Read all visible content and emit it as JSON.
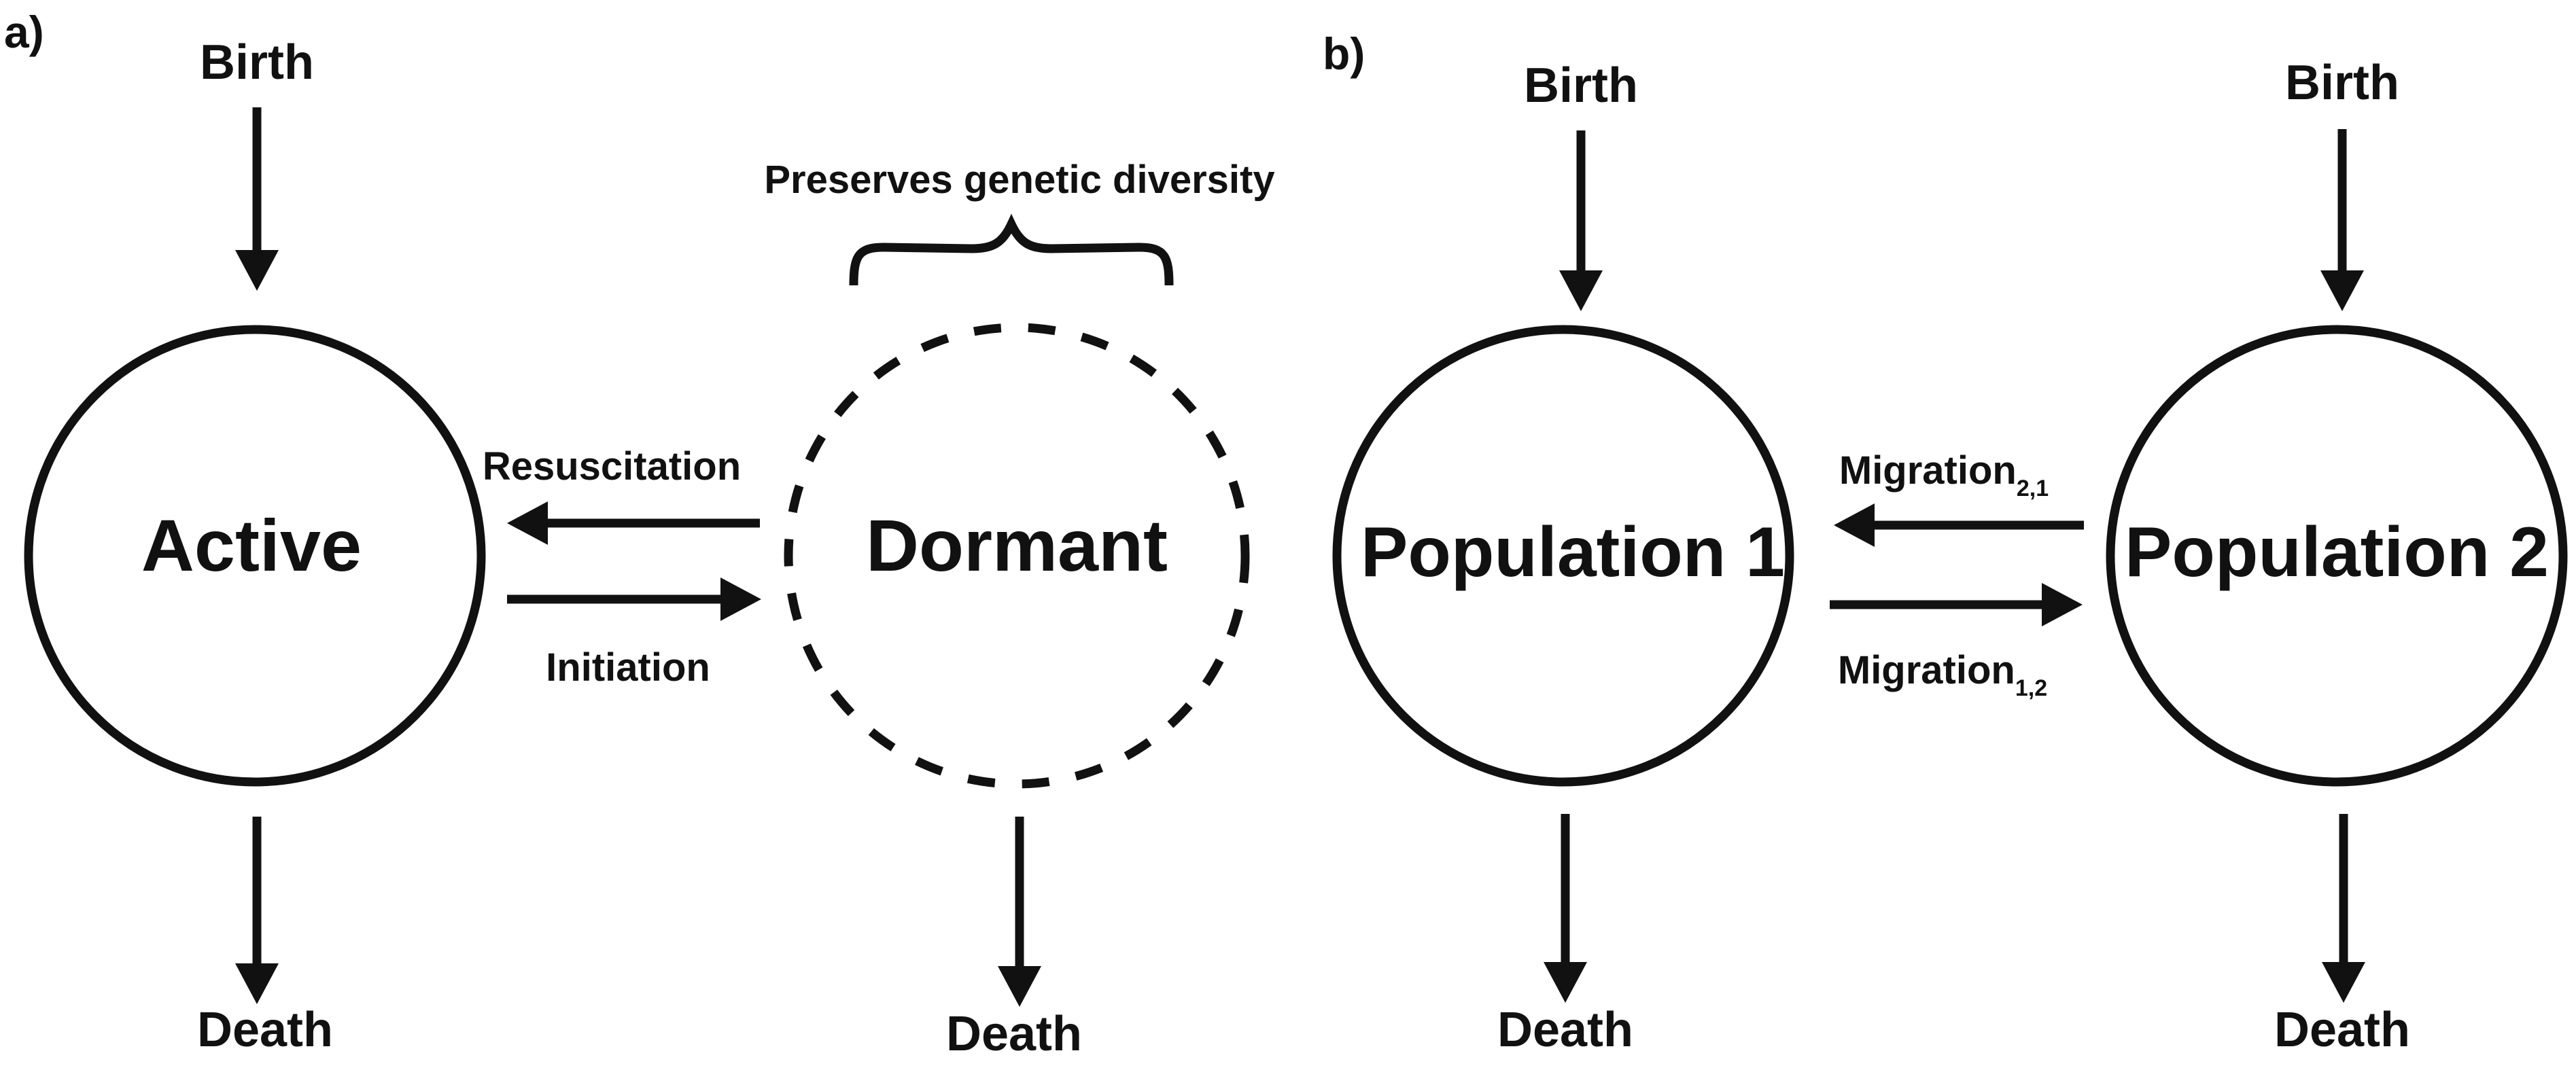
{
  "panel_a": {
    "label": "a)",
    "active": {
      "label": "Active",
      "birth": "Birth",
      "death": "Death"
    },
    "dormant": {
      "label": "Dormant",
      "death": "Death"
    },
    "resuscitation": "Resuscitation",
    "initiation": "Initiation",
    "brace_label": "Preserves genetic diversity"
  },
  "panel_b": {
    "label": "b)",
    "population1": {
      "label": "Population 1",
      "birth": "Birth",
      "death": "Death"
    },
    "population2": {
      "label": "Population 2",
      "birth": "Birth",
      "death": "Death"
    },
    "migration_2_1": {
      "base": "Migration",
      "subscript": "2,1"
    },
    "migration_1_2": {
      "base": "Migration",
      "subscript": "1,2"
    }
  },
  "colors": {
    "ink": "#111111",
    "background": "#ffffff"
  }
}
